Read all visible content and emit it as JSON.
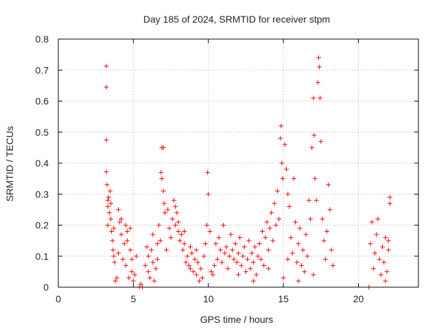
{
  "chart_data": {
    "type": "scatter",
    "title": "Day 185 of 2024, SRMTID for receiver stpm",
    "xlabel": "GPS time / hours",
    "ylabel": "SRMTID / TECUs",
    "xlim": [
      0,
      24
    ],
    "ylim": [
      0,
      0.8
    ],
    "xticks": [
      0,
      5,
      10,
      15,
      20
    ],
    "xtick_labels": [
      "0",
      "5",
      "10",
      "15",
      "20"
    ],
    "yticks": [
      0,
      0.1,
      0.2,
      0.3,
      0.4,
      0.5,
      0.6,
      0.7,
      0.8
    ],
    "ytick_labels": [
      "0",
      "0.1",
      "0.2",
      "0.3",
      "0.4",
      "0.5",
      "0.6",
      "0.7",
      "0.8"
    ],
    "grid": true,
    "marker": "+",
    "colors": {
      "series": "#ff0000",
      "grid": "#aaaaaa",
      "axis": "#000000"
    },
    "series": [
      {
        "name": "SRMTID",
        "points": [
          [
            3.2,
            0.713
          ],
          [
            3.2,
            0.645
          ],
          [
            3.2,
            0.475
          ],
          [
            3.2,
            0.372
          ],
          [
            3.25,
            0.33
          ],
          [
            3.3,
            0.28
          ],
          [
            3.3,
            0.26
          ],
          [
            3.35,
            0.29
          ],
          [
            3.4,
            0.24
          ],
          [
            3.45,
            0.31
          ],
          [
            3.5,
            0.22
          ],
          [
            3.55,
            0.18
          ],
          [
            3.6,
            0.15
          ],
          [
            3.65,
            0.12
          ],
          [
            3.7,
            0.1
          ],
          [
            3.75,
            0.08
          ],
          [
            3.8,
            0.02
          ],
          [
            3.9,
            0.03
          ],
          [
            4.0,
            0.11
          ],
          [
            4.1,
            0.21
          ],
          [
            4.2,
            0.17
          ],
          [
            4.3,
            0.09
          ],
          [
            4.4,
            0.14
          ],
          [
            4.5,
            0.07
          ],
          [
            4.6,
            0.18
          ],
          [
            4.7,
            0.03
          ],
          [
            4.8,
            0.12
          ],
          [
            4.9,
            0.05
          ],
          [
            5.0,
            0.02
          ],
          [
            5.1,
            0.04
          ],
          [
            5.2,
            0.1
          ],
          [
            3.3,
            0.2
          ],
          [
            3.5,
            0.27
          ],
          [
            3.7,
            0.19
          ],
          [
            4.0,
            0.25
          ],
          [
            4.2,
            0.22
          ],
          [
            4.5,
            0.2
          ],
          [
            4.8,
            0.19
          ],
          [
            4.6,
            0.15
          ],
          [
            4.9,
            0.09
          ],
          [
            5.4,
            0.0
          ],
          [
            5.5,
            0.01
          ],
          [
            5.6,
            0.0
          ],
          [
            5.8,
            0.07
          ],
          [
            5.9,
            0.13
          ],
          [
            6.0,
            0.05
          ],
          [
            6.1,
            0.03
          ],
          [
            6.2,
            0.12
          ],
          [
            6.3,
            0.17
          ],
          [
            6.4,
            0.02
          ],
          [
            6.5,
            0.06
          ],
          [
            6.6,
            0.14
          ],
          [
            6.7,
            0.2
          ],
          [
            6.8,
            0.15
          ],
          [
            6.85,
            0.37
          ],
          [
            6.9,
            0.35
          ],
          [
            6.9,
            0.45
          ],
          [
            7.0,
            0.31
          ],
          [
            7.0,
            0.45
          ],
          [
            7.05,
            0.27
          ],
          [
            7.1,
            0.24
          ],
          [
            7.2,
            0.12
          ],
          [
            7.3,
            0.25
          ],
          [
            7.4,
            0.19
          ],
          [
            7.5,
            0.16
          ],
          [
            7.6,
            0.22
          ],
          [
            7.7,
            0.28
          ],
          [
            7.8,
            0.2
          ],
          [
            7.9,
            0.24
          ],
          [
            8.0,
            0.18
          ],
          [
            8.1,
            0.15
          ],
          [
            8.2,
            0.17
          ],
          [
            8.3,
            0.12
          ],
          [
            8.4,
            0.14
          ],
          [
            8.5,
            0.08
          ],
          [
            8.6,
            0.1
          ],
          [
            8.7,
            0.07
          ],
          [
            8.8,
            0.13
          ],
          [
            8.9,
            0.11
          ],
          [
            9.0,
            0.05
          ],
          [
            9.1,
            0.09
          ],
          [
            9.2,
            0.04
          ],
          [
            9.3,
            0.08
          ],
          [
            9.4,
            0.02
          ],
          [
            9.5,
            0.06
          ],
          [
            9.6,
            0.03
          ],
          [
            9.7,
            0.1
          ],
          [
            9.8,
            0.14
          ],
          [
            9.9,
            0.2
          ],
          [
            9.95,
            0.37
          ],
          [
            10.0,
            0.3
          ],
          [
            10.1,
            0.18
          ],
          [
            10.2,
            0.05
          ],
          [
            10.3,
            0.04
          ],
          [
            6.0,
            0.1
          ],
          [
            6.3,
            0.08
          ],
          [
            6.6,
            0.09
          ],
          [
            7.8,
            0.26
          ],
          [
            8.0,
            0.21
          ],
          [
            8.4,
            0.18
          ],
          [
            8.8,
            0.06
          ],
          [
            9.2,
            0.12
          ],
          [
            10.4,
            0.07
          ],
          [
            10.5,
            0.14
          ],
          [
            10.6,
            0.09
          ],
          [
            10.7,
            0.16
          ],
          [
            10.8,
            0.12
          ],
          [
            10.9,
            0.08
          ],
          [
            11.0,
            0.2
          ],
          [
            11.1,
            0.11
          ],
          [
            11.2,
            0.13
          ],
          [
            11.3,
            0.06
          ],
          [
            11.4,
            0.1
          ],
          [
            11.5,
            0.17
          ],
          [
            11.6,
            0.12
          ],
          [
            11.7,
            0.09
          ],
          [
            11.8,
            0.14
          ],
          [
            11.9,
            0.08
          ],
          [
            12.0,
            0.11
          ],
          [
            12.1,
            0.16
          ],
          [
            12.2,
            0.07
          ],
          [
            12.3,
            0.1
          ],
          [
            12.4,
            0.13
          ],
          [
            12.5,
            0.05
          ],
          [
            12.6,
            0.09
          ],
          [
            12.7,
            0.15
          ],
          [
            12.8,
            0.06
          ],
          [
            12.9,
            0.11
          ],
          [
            13.0,
            0.08
          ],
          [
            13.1,
            0.13
          ],
          [
            13.2,
            0.04
          ],
          [
            13.3,
            0.1
          ],
          [
            13.4,
            0.14
          ],
          [
            13.5,
            0.09
          ],
          [
            13.6,
            0.18
          ],
          [
            13.7,
            0.07
          ],
          [
            13.8,
            0.16
          ],
          [
            13.9,
            0.21
          ],
          [
            14.0,
            0.12
          ],
          [
            14.1,
            0.19
          ],
          [
            14.2,
            0.24
          ],
          [
            14.3,
            0.15
          ],
          [
            14.4,
            0.27
          ],
          [
            14.5,
            0.2
          ],
          [
            14.6,
            0.31
          ],
          [
            14.7,
            0.22
          ],
          [
            14.8,
            0.48
          ],
          [
            14.85,
            0.52
          ],
          [
            14.9,
            0.4
          ],
          [
            14.95,
            0.35
          ],
          [
            15.0,
            0.03
          ],
          [
            15.1,
            0.46
          ],
          [
            15.2,
            0.38
          ],
          [
            15.3,
            0.3
          ],
          [
            15.4,
            0.26
          ],
          [
            15.5,
            0.16
          ],
          [
            15.6,
            0.11
          ],
          [
            15.7,
            0.35
          ],
          [
            15.8,
            0.21
          ],
          [
            15.9,
            0.08
          ],
          [
            16.0,
            0.14
          ],
          [
            16.1,
            0.19
          ],
          [
            16.2,
            0.07
          ],
          [
            16.3,
            0.12
          ],
          [
            16.4,
            0.05
          ],
          [
            16.5,
            0.17
          ],
          [
            16.6,
            0.1
          ],
          [
            16.7,
            0.28
          ],
          [
            16.8,
            0.22
          ],
          [
            16.9,
            0.45
          ],
          [
            17.0,
            0.61
          ],
          [
            17.05,
            0.49
          ],
          [
            17.1,
            0.35
          ],
          [
            17.2,
            0.28
          ],
          [
            17.3,
            0.66
          ],
          [
            17.35,
            0.74
          ],
          [
            17.4,
            0.71
          ],
          [
            17.45,
            0.61
          ],
          [
            17.5,
            0.47
          ],
          [
            17.6,
            0.22
          ],
          [
            17.7,
            0.15
          ],
          [
            17.8,
            0.09
          ],
          [
            17.9,
            0.18
          ],
          [
            18.0,
            0.33
          ],
          [
            18.1,
            0.25
          ],
          [
            18.2,
            0.12
          ],
          [
            18.3,
            0.07
          ],
          [
            12.0,
            0.04
          ],
          [
            13.0,
            0.02
          ],
          [
            14.0,
            0.06
          ],
          [
            15.3,
            0.09
          ],
          [
            16.0,
            0.02
          ],
          [
            17.0,
            0.04
          ],
          [
            20.7,
            0.0
          ],
          [
            20.8,
            0.14
          ],
          [
            20.9,
            0.21
          ],
          [
            21.0,
            0.06
          ],
          [
            21.1,
            0.11
          ],
          [
            21.2,
            0.17
          ],
          [
            21.3,
            0.22
          ],
          [
            21.4,
            0.09
          ],
          [
            21.5,
            0.04
          ],
          [
            21.6,
            0.13
          ],
          [
            21.7,
            0.08
          ],
          [
            21.8,
            0.16
          ],
          [
            21.9,
            0.05
          ],
          [
            22.0,
            0.12
          ],
          [
            22.1,
            0.29
          ],
          [
            22.1,
            0.27
          ],
          [
            22.0,
            0.15
          ],
          [
            21.8,
            0.02
          ]
        ]
      }
    ]
  }
}
